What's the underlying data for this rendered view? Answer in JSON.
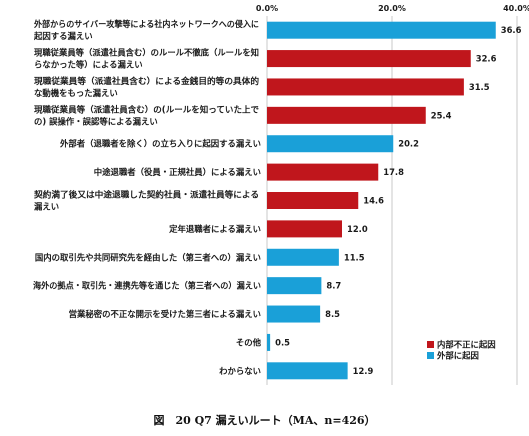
{
  "caption": "図　20 Q7 漏えいルート（MA、n=426）",
  "chart_data": {
    "type": "bar",
    "orientation": "horizontal",
    "x_ticks": [
      "0.0%",
      "20.0%",
      "40.0%"
    ],
    "xlim": [
      0,
      40
    ],
    "grid": true,
    "legend_position": "bottom-right",
    "series_names": {
      "internal": "内部不正に起因",
      "external": "外部に起因"
    },
    "colors": {
      "internal": "#c0161c",
      "external": "#1aa0d8",
      "grid": "#c9c9c9"
    },
    "categories": [
      [
        "外部からのサイバー攻撃等による社内ネットワークへの侵入に",
        "起因する漏えい"
      ],
      [
        "現職従業員等（派遣社員含む）のルール不徹底（ルールを知",
        "らなかった等）による漏えい"
      ],
      [
        "現職従業員等（派遣社員含む）による金銭目的等の具体的",
        "な動機をもった漏えい"
      ],
      [
        "現職従業員等（派遣社員含む）の(ルールを知っていた上で",
        "の) 誤操作・誤認等による漏えい"
      ],
      [
        "外部者（退職者を除く）の立ち入りに起因する漏えい"
      ],
      [
        "中途退職者（役員・正規社員）による漏えい"
      ],
      [
        "契約満了後又は中途退職した契約社員・派遣社員等による",
        "漏えい"
      ],
      [
        "定年退職者による漏えい"
      ],
      [
        "国内の取引先や共同研究先を経由した（第三者への）漏えい"
      ],
      [
        "海外の拠点・取引先・連携先等を通じた（第三者への）漏えい"
      ],
      [
        "営業秘密の不正な開示を受けた第三者による漏えい"
      ],
      [
        "その他"
      ],
      [
        "わからない"
      ]
    ],
    "values": [
      36.6,
      32.6,
      31.5,
      25.4,
      20.2,
      17.8,
      14.6,
      12.0,
      11.5,
      8.7,
      8.5,
      0.5,
      12.9
    ],
    "value_labels": [
      "36.6",
      "32.6",
      "31.5",
      "25.4",
      "20.2",
      "17.8",
      "14.6",
      "12.0",
      "11.5",
      "8.7",
      "8.5",
      "0.5",
      "12.9"
    ],
    "groups": [
      "external",
      "internal",
      "internal",
      "internal",
      "external",
      "internal",
      "internal",
      "internal",
      "external",
      "external",
      "external",
      "external",
      "external"
    ]
  }
}
